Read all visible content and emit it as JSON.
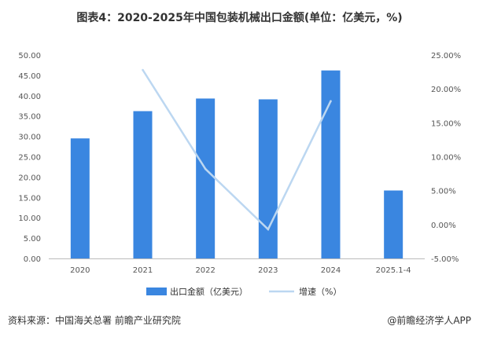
{
  "title": "图表4：2020-2025年中国包装机械出口金额(单位：亿美元，%)",
  "source": "资料来源：中国海关总署 前瞻产业研究院",
  "attribution": "@前瞻经济学人APP",
  "colors": {
    "bar": "#3a86e0",
    "line": "#bcd7f1",
    "grid": "#e3e3e3",
    "axis": "#bbbbbb"
  },
  "chart_data": {
    "type": "bar",
    "categories": [
      "2020",
      "2021",
      "2022",
      "2023",
      "2024",
      "2025.1-4"
    ],
    "series": [
      {
        "name": "出口金额（亿美元）",
        "type": "bar",
        "axis": "left",
        "values": [
          29.5,
          36.2,
          39.3,
          39.1,
          46.2,
          16.7
        ]
      },
      {
        "name": "增速（%）",
        "type": "line",
        "axis": "right",
        "values": [
          null,
          22.8,
          8.2,
          -0.7,
          18.2,
          null
        ]
      }
    ],
    "y_left": {
      "ylim": [
        0,
        50
      ],
      "ticks": [
        "0.00",
        "5.00",
        "10.00",
        "15.00",
        "20.00",
        "25.00",
        "30.00",
        "35.00",
        "40.00",
        "45.00",
        "50.00"
      ]
    },
    "y_right": {
      "ylim": [
        -5,
        25
      ],
      "ticks": [
        "-5.00%",
        "0.00%",
        "5.00%",
        "10.00%",
        "15.00%",
        "20.00%",
        "25.00%"
      ]
    },
    "grid": false,
    "legend": "bottom"
  }
}
